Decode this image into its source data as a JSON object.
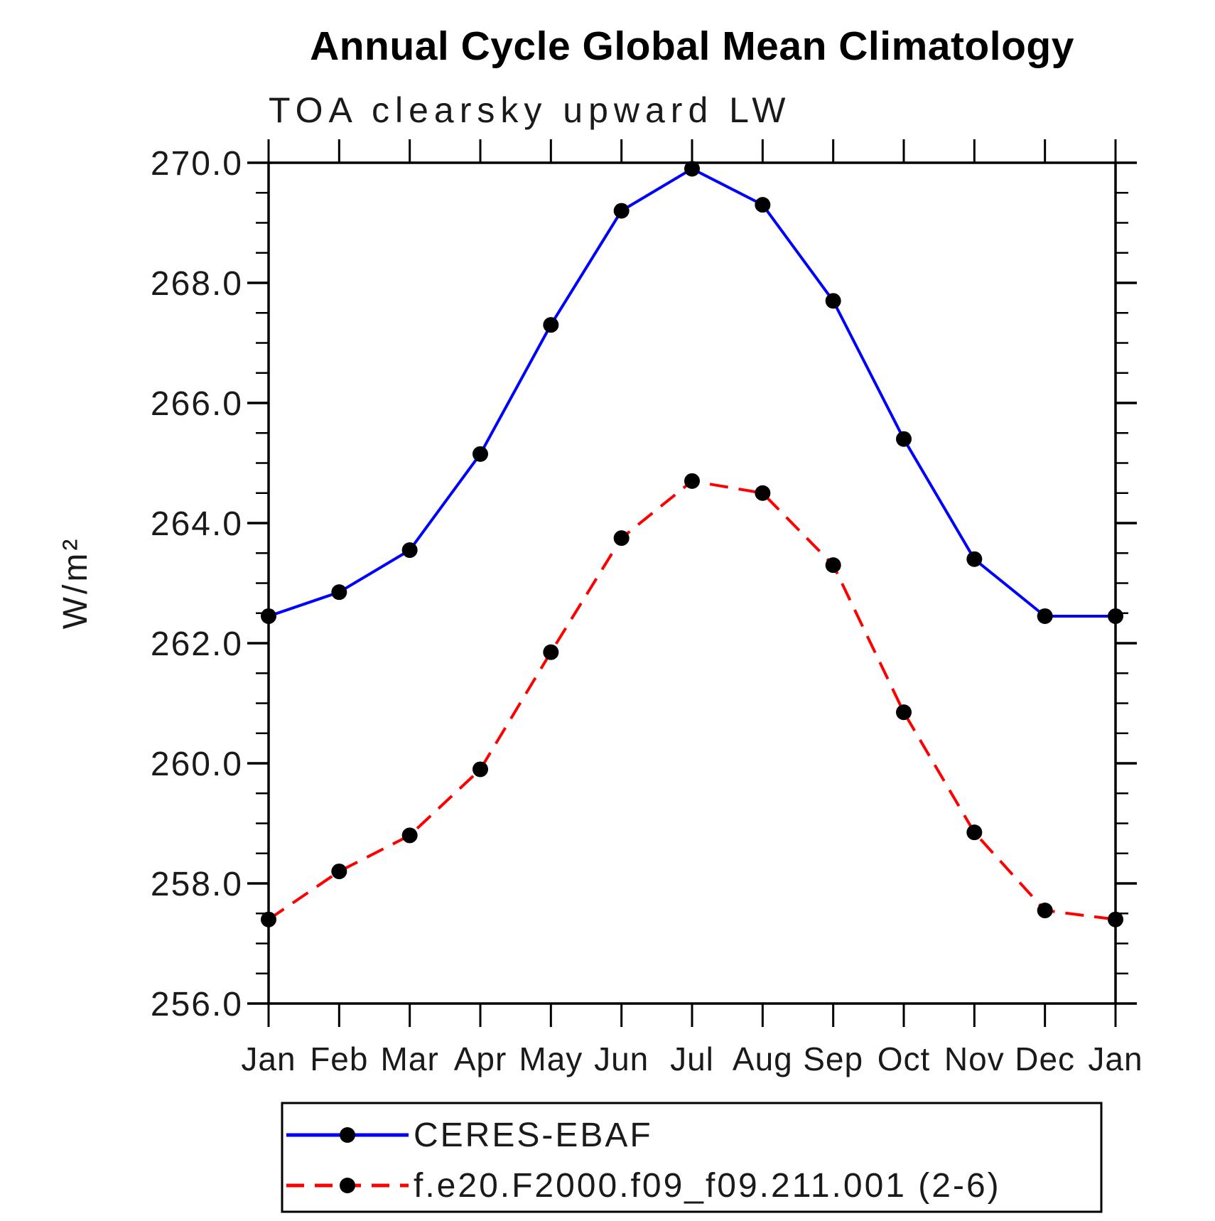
{
  "title": "Annual Cycle Global Mean Climatology",
  "subtitle": "TOA clearsky upward LW",
  "y_axis_title": "W/m²",
  "colors": {
    "background": "#ffffff",
    "axis": "#000000",
    "marker": "#000000",
    "title_text": "#000000",
    "label_text": "#1a1a1a",
    "series1": "#0000ff",
    "series2": "#ff0000"
  },
  "chart_data": {
    "type": "line",
    "title": "Annual Cycle Global Mean Climatology",
    "subtitle": "TOA clearsky upward LW",
    "xlabel": "",
    "ylabel": "W/m²",
    "x_categories": [
      "Jan",
      "Feb",
      "Mar",
      "Apr",
      "May",
      "Jun",
      "Jul",
      "Aug",
      "Sep",
      "Oct",
      "Nov",
      "Dec",
      "Jan"
    ],
    "ylim": [
      256.0,
      270.0
    ],
    "ytick_interval": 2.0,
    "yminor_tick_interval": 0.5,
    "ytick_labels": [
      "256.0",
      "258.0",
      "260.0",
      "262.0",
      "264.0",
      "266.0",
      "268.0",
      "270.0"
    ],
    "grid": false,
    "legend_position": "bottom",
    "series": [
      {
        "name": "CERES-EBAF",
        "color": "#0000ff",
        "line_style": "solid",
        "marker": "filled-circle",
        "values": [
          262.45,
          262.85,
          263.55,
          265.15,
          267.3,
          269.2,
          269.9,
          269.3,
          267.7,
          265.4,
          263.4,
          262.45,
          262.45
        ]
      },
      {
        "name": "f.e20.F2000.f09_f09.211.001 (2-6)",
        "color": "#ff0000",
        "line_style": "dashed",
        "marker": "filled-circle",
        "values": [
          257.4,
          258.2,
          258.8,
          259.9,
          261.85,
          263.75,
          264.7,
          264.5,
          263.3,
          260.85,
          258.85,
          257.55,
          257.4
        ]
      }
    ]
  }
}
